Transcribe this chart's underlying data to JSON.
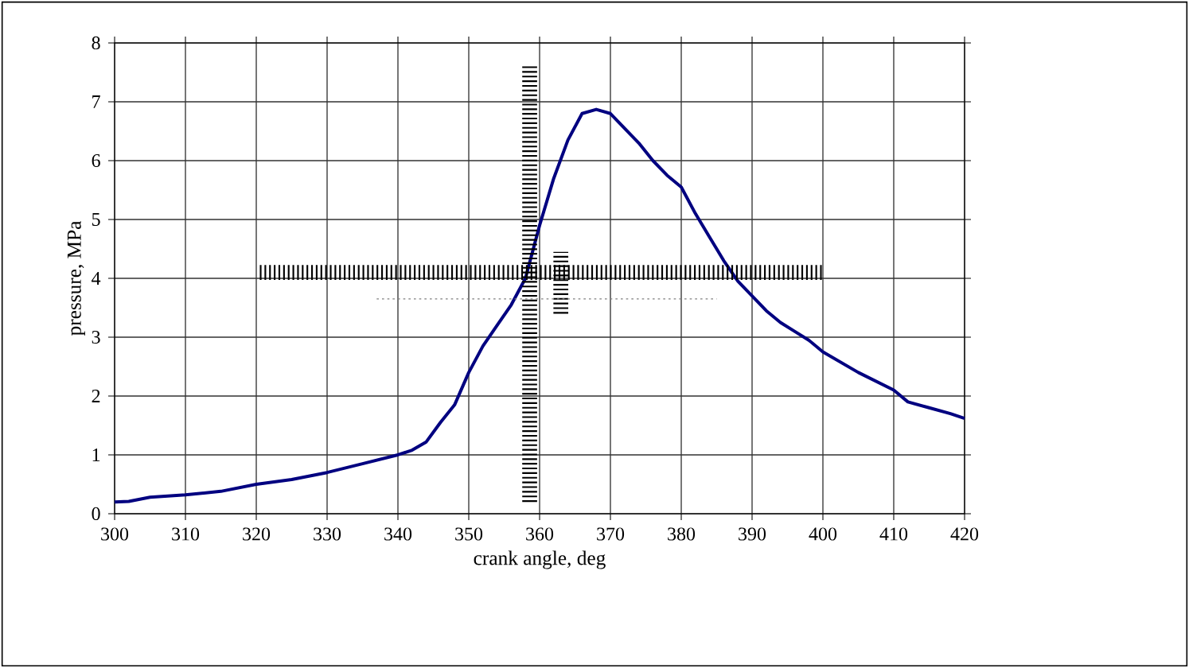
{
  "chart_data": {
    "type": "line",
    "xlabel": "crank angle, deg",
    "ylabel": "pressure, MPa",
    "xlim": [
      300,
      420
    ],
    "xticks": [
      300,
      310,
      320,
      330,
      340,
      350,
      360,
      370,
      380,
      390,
      400,
      410,
      420
    ],
    "ylim": [
      0,
      8
    ],
    "yticks": [
      0,
      1,
      2,
      3,
      4,
      5,
      6,
      7,
      8
    ],
    "grid": true,
    "marker": "none",
    "series": [
      {
        "color": "#000080",
        "line_style": "solid",
        "x": [
          300,
          302,
          305,
          310,
          315,
          320,
          325,
          330,
          335,
          340,
          342,
          344,
          346,
          348,
          350,
          352,
          354,
          356,
          358,
          360,
          362,
          364,
          366,
          368,
          370,
          372,
          374,
          376,
          378,
          380,
          382,
          384,
          386,
          388,
          390,
          392,
          394,
          396,
          398,
          400,
          405,
          410,
          412,
          415,
          418,
          420
        ],
        "values": [
          0.2,
          0.21,
          0.28,
          0.32,
          0.38,
          0.5,
          0.58,
          0.7,
          0.85,
          1.0,
          1.08,
          1.22,
          1.55,
          1.85,
          2.4,
          2.85,
          3.2,
          3.55,
          4.0,
          4.9,
          5.7,
          6.35,
          6.8,
          6.87,
          6.8,
          6.55,
          6.3,
          6.0,
          5.75,
          5.55,
          5.1,
          4.7,
          4.3,
          3.95,
          3.7,
          3.45,
          3.25,
          3.1,
          2.95,
          2.75,
          2.4,
          2.1,
          1.9,
          1.8,
          1.7,
          1.62
        ]
      },
      {
        "color": "#000000",
        "line_style": "dashed",
        "x": [
          320.5,
          400
        ],
        "values": [
          4.1,
          4.1
        ]
      },
      {
        "color": "#000000",
        "line_style": "dashed",
        "x": [
          358.6,
          358.6
        ],
        "values": [
          0.2,
          7.6
        ]
      },
      {
        "color": "#000000",
        "line_style": "dashed",
        "x": [
          363,
          363
        ],
        "values": [
          3.4,
          4.45
        ]
      },
      {
        "color": "#808080",
        "line_style": "dotted",
        "x": [
          337,
          385
        ],
        "values": [
          3.65,
          3.65
        ]
      }
    ]
  }
}
